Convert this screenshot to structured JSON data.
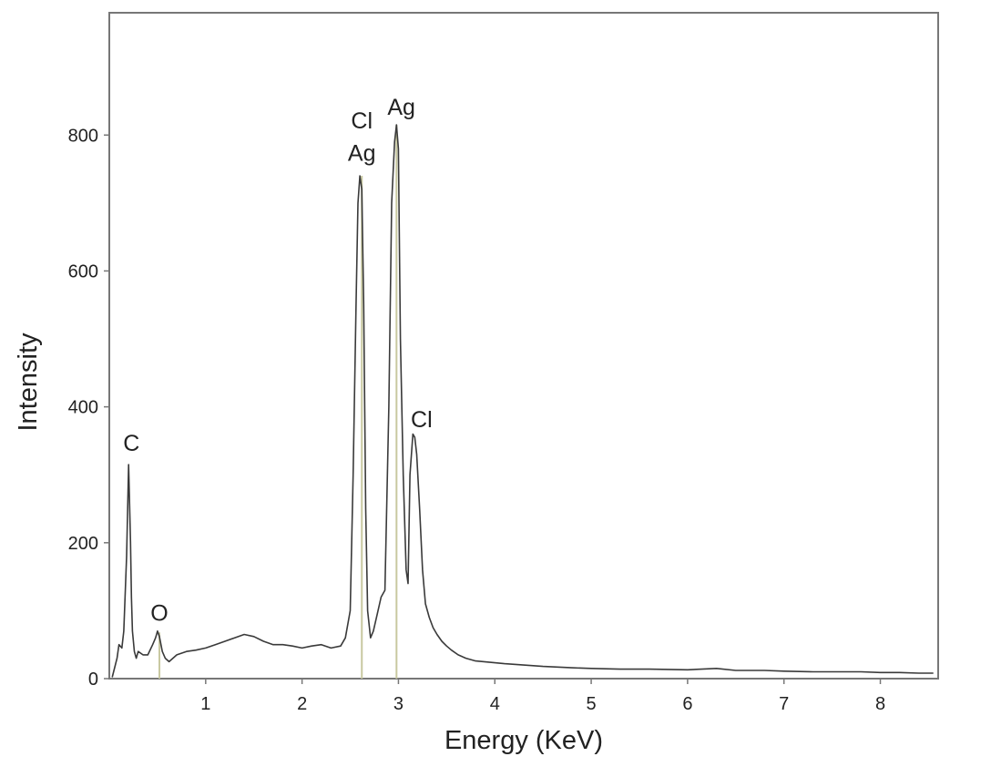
{
  "chart_data": {
    "type": "line",
    "xlabel": "Energy (KeV)",
    "ylabel": "Intensity",
    "xlim": [
      0,
      8.6
    ],
    "ylim": [
      0,
      980
    ],
    "x_ticks": [
      1,
      2,
      3,
      4,
      5,
      6,
      7,
      8
    ],
    "y_ticks": [
      0,
      200,
      400,
      600,
      800
    ],
    "grid": false,
    "legend": "none",
    "colors": {
      "spectrum": "#3a3a3a",
      "marker": "#c8c8a0",
      "frame": "#777777"
    },
    "spectrum": {
      "x": [
        0.03,
        0.08,
        0.1,
        0.13,
        0.15,
        0.18,
        0.2,
        0.22,
        0.23,
        0.24,
        0.26,
        0.28,
        0.3,
        0.35,
        0.4,
        0.45,
        0.48,
        0.5,
        0.52,
        0.55,
        0.58,
        0.62,
        0.7,
        0.8,
        0.9,
        1.0,
        1.1,
        1.2,
        1.3,
        1.4,
        1.5,
        1.6,
        1.7,
        1.8,
        1.9,
        2.0,
        2.1,
        2.2,
        2.3,
        2.4,
        2.45,
        2.5,
        2.53,
        2.56,
        2.58,
        2.6,
        2.62,
        2.64,
        2.66,
        2.68,
        2.71,
        2.74,
        2.78,
        2.82,
        2.86,
        2.9,
        2.93,
        2.96,
        2.98,
        3.0,
        3.02,
        3.05,
        3.08,
        3.1,
        3.12,
        3.15,
        3.17,
        3.19,
        3.22,
        3.25,
        3.28,
        3.32,
        3.36,
        3.4,
        3.45,
        3.5,
        3.55,
        3.62,
        3.7,
        3.8,
        3.95,
        4.1,
        4.3,
        4.5,
        4.8,
        5.0,
        5.3,
        5.6,
        6.0,
        6.3,
        6.5,
        6.8,
        7.0,
        7.3,
        7.6,
        7.8,
        8.0,
        8.2,
        8.4,
        8.55
      ],
      "y": [
        2,
        30,
        50,
        45,
        70,
        180,
        315,
        200,
        120,
        70,
        40,
        30,
        40,
        35,
        35,
        50,
        60,
        70,
        62,
        40,
        30,
        25,
        35,
        40,
        42,
        45,
        50,
        55,
        60,
        65,
        62,
        55,
        50,
        50,
        48,
        45,
        48,
        50,
        45,
        48,
        60,
        100,
        300,
        550,
        700,
        740,
        720,
        550,
        250,
        100,
        60,
        70,
        95,
        120,
        130,
        400,
        700,
        790,
        815,
        780,
        500,
        300,
        160,
        140,
        300,
        360,
        355,
        330,
        250,
        160,
        110,
        90,
        75,
        65,
        55,
        48,
        42,
        35,
        30,
        26,
        24,
        22,
        20,
        18,
        16,
        15,
        14,
        14,
        13,
        15,
        12,
        12,
        11,
        10,
        10,
        10,
        9,
        9,
        8,
        8
      ]
    },
    "markers": [
      {
        "x": 0.52,
        "y": 68
      },
      {
        "x": 2.62,
        "y": 740
      },
      {
        "x": 2.98,
        "y": 815
      }
    ],
    "annotations": [
      {
        "text": "C",
        "x": 0.23,
        "y": 335
      },
      {
        "text": "O",
        "x": 0.52,
        "y": 85
      },
      {
        "text": "Cl",
        "x": 2.62,
        "y": 810
      },
      {
        "text": "Ag",
        "x": 2.62,
        "y": 762
      },
      {
        "text": "Ag",
        "x": 3.03,
        "y": 830
      },
      {
        "text": "Cl",
        "x": 3.24,
        "y": 370
      }
    ]
  }
}
